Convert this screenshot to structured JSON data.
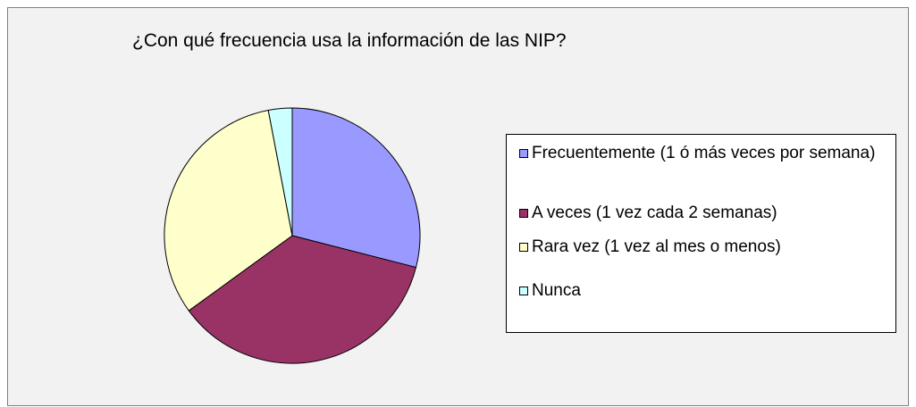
{
  "chart_data": {
    "type": "pie",
    "title": "¿Con qué frecuencia usa la información de las NIP?",
    "categories": [
      "Frecuentemente (1 ó más veces por semana)",
      "A veces (1 vez cada 2 semanas)",
      "Rara vez (1 vez al mes o menos)",
      "Nunca"
    ],
    "values": [
      29,
      36,
      32,
      3
    ],
    "colors": [
      "#9999ff",
      "#993366",
      "#ffffcc",
      "#ccffff"
    ],
    "legend": "right"
  }
}
